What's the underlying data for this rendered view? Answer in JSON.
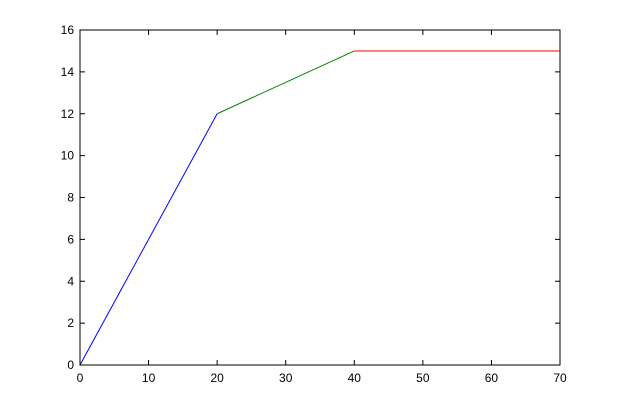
{
  "chart_data": {
    "type": "line",
    "title": "",
    "xlabel": "",
    "ylabel": "",
    "xlim": [
      0,
      70
    ],
    "ylim": [
      0,
      16
    ],
    "x_ticks": [
      0,
      10,
      20,
      30,
      40,
      50,
      60,
      70
    ],
    "y_ticks": [
      0,
      2,
      4,
      6,
      8,
      10,
      12,
      14,
      16
    ],
    "x_tick_labels": [
      "0",
      "10",
      "20",
      "30",
      "40",
      "50",
      "60",
      "70"
    ],
    "y_tick_labels": [
      "0",
      "2",
      "4",
      "6",
      "8",
      "10",
      "12",
      "14",
      "16"
    ],
    "grid": false,
    "legend": "none",
    "series": [
      {
        "color": "#0000ff",
        "x": [
          0,
          20
        ],
        "y": [
          0,
          12
        ]
      },
      {
        "color": "#008000",
        "x": [
          20,
          40
        ],
        "y": [
          12,
          15
        ]
      },
      {
        "color": "#ff0000",
        "x": [
          40,
          70
        ],
        "y": [
          15,
          15
        ]
      }
    ]
  }
}
